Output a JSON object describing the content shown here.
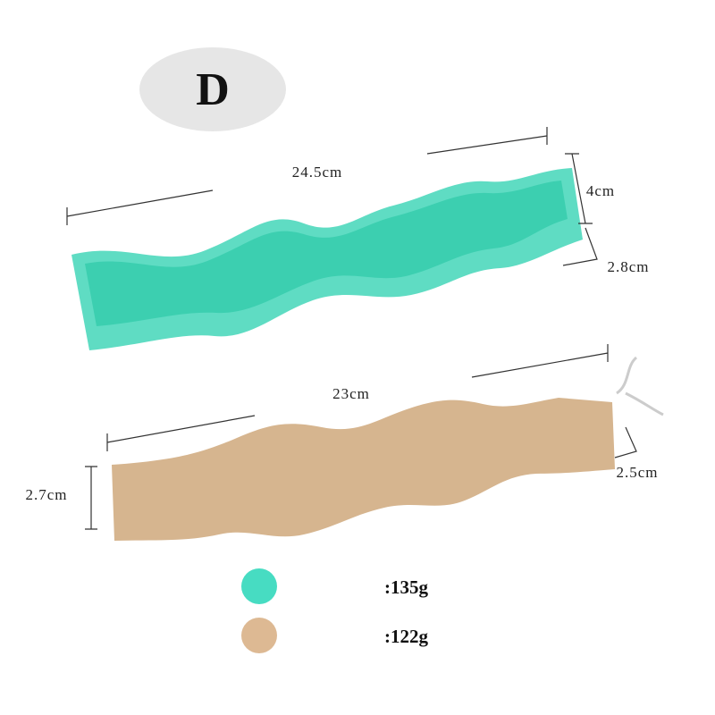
{
  "badge": {
    "label": "D"
  },
  "mold": {
    "length": "24.5cm",
    "height": "4cm",
    "width": "2.8cm"
  },
  "candle": {
    "length": "23cm",
    "height": "2.7cm",
    "width": "2.5cm"
  },
  "weights": [
    {
      "label": ":135g"
    },
    {
      "label": ":122g"
    }
  ]
}
